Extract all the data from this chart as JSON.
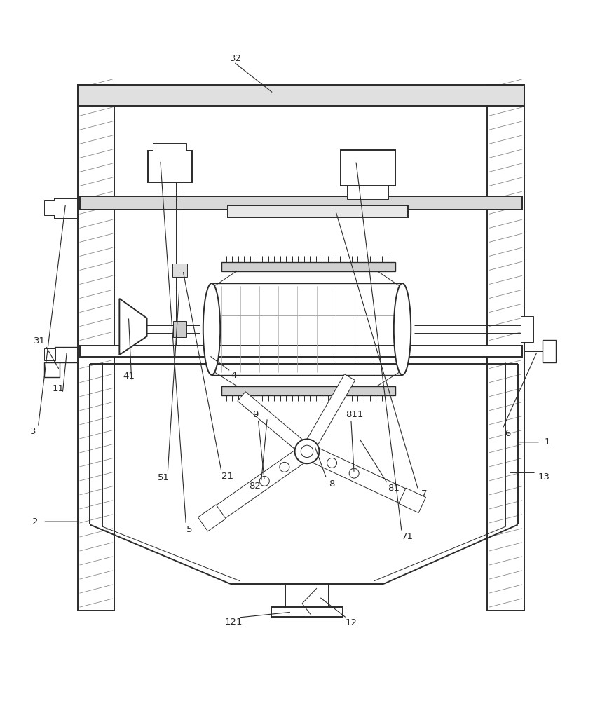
{
  "bg_color": "#ffffff",
  "line_color": "#2a2a2a",
  "lw_main": 1.4,
  "lw_med": 1.0,
  "lw_thin": 0.7,
  "lw_hatch": 0.5,
  "fig_width": 8.76,
  "fig_height": 10.0,
  "dpi": 100
}
